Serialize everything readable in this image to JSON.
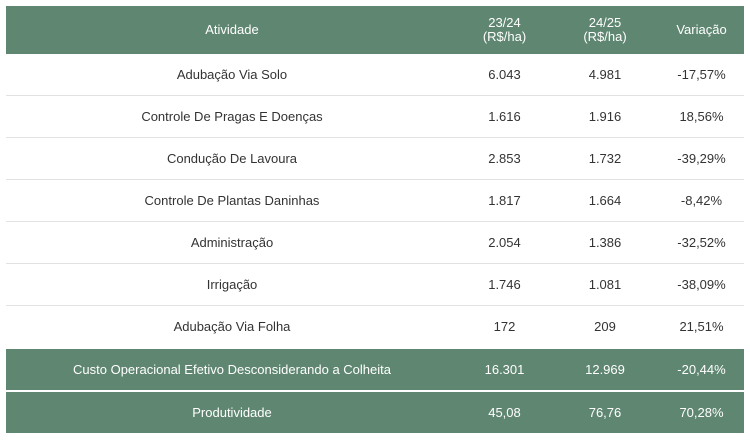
{
  "header": {
    "atividade": "Atividade",
    "col1_line1": "23/24",
    "col1_line2": "(R$/ha)",
    "col2_line1": "24/25",
    "col2_line2": "(R$/ha)",
    "variacao": "Variação"
  },
  "rows": [
    {
      "atividade": "Adubação Via Solo",
      "v2324": "6.043",
      "v2425": "4.981",
      "variacao": "-17,57%"
    },
    {
      "atividade": "Controle De Pragas E Doenças",
      "v2324": "1.616",
      "v2425": "1.916",
      "variacao": "18,56%"
    },
    {
      "atividade": "Condução De Lavoura",
      "v2324": "2.853",
      "v2425": "1.732",
      "variacao": "-39,29%"
    },
    {
      "atividade": "Controle De Plantas Daninhas",
      "v2324": "1.817",
      "v2425": "1.664",
      "variacao": "-8,42%"
    },
    {
      "atividade": "Administração",
      "v2324": "2.054",
      "v2425": "1.386",
      "variacao": "-32,52%"
    },
    {
      "atividade": "Irrigação",
      "v2324": "1.746",
      "v2425": "1.081",
      "variacao": "-38,09%"
    },
    {
      "atividade": "Adubação Via Folha",
      "v2324": "172",
      "v2425": "209",
      "variacao": "21,51%"
    }
  ],
  "totals": [
    {
      "atividade": "Custo Operacional Efetivo Desconsiderando a Colheita",
      "v2324": "16.301",
      "v2425": "12.969",
      "variacao": "-20,44%"
    },
    {
      "atividade": "Produtividade",
      "v2324": "45,08",
      "v2425": "76,76",
      "variacao": "70,28%"
    }
  ],
  "colors": {
    "header_bg": "#5e8670",
    "header_text": "#ffffff",
    "body_text": "#333333"
  }
}
